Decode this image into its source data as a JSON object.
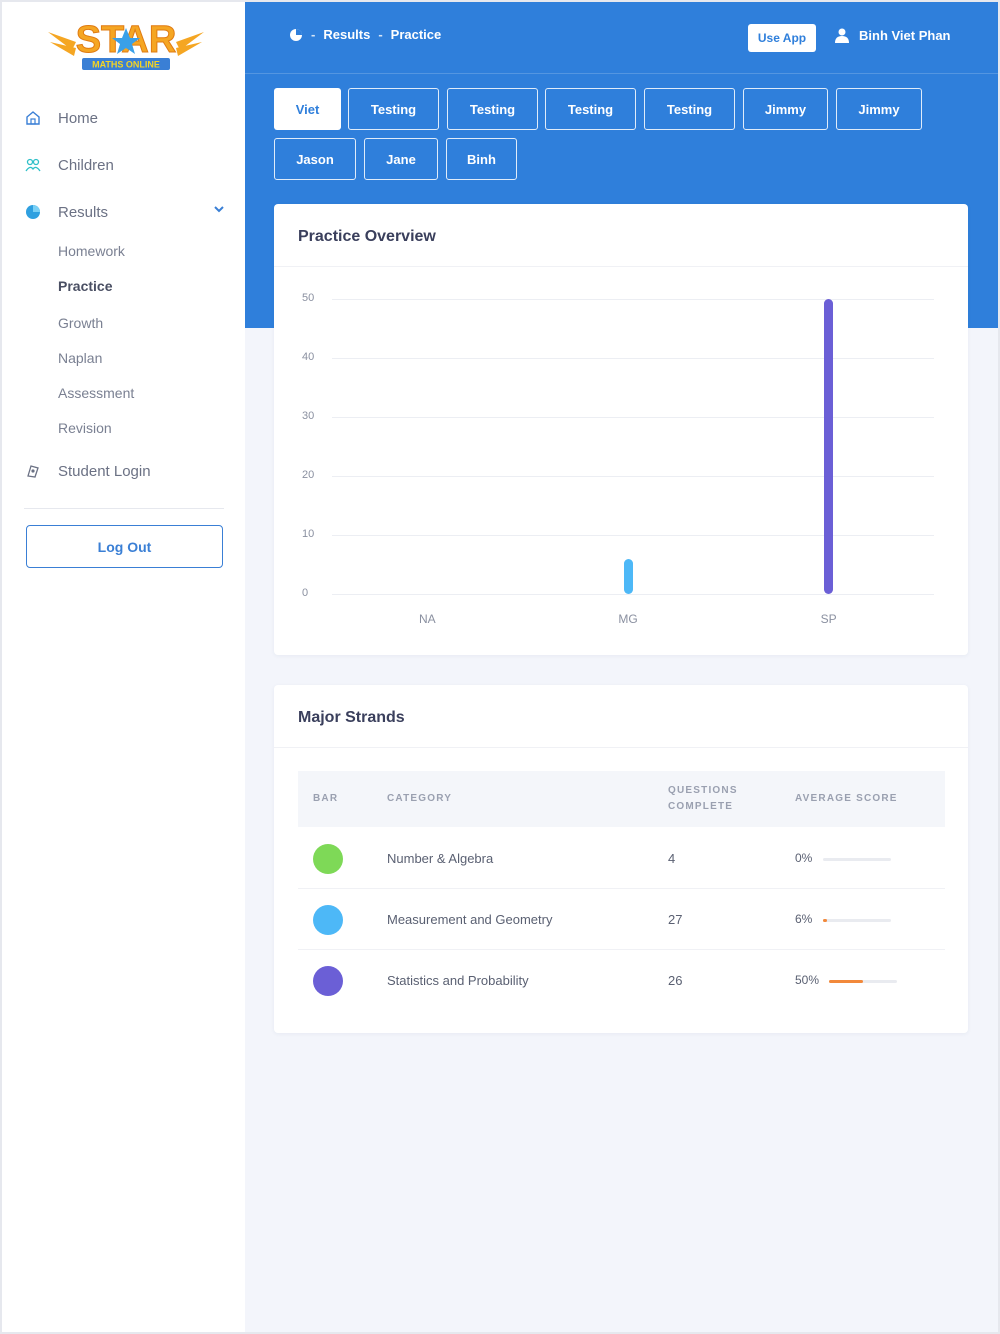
{
  "brand": {
    "logo_text": "STAR",
    "logo_subtext": "MATHS ONLINE"
  },
  "colors": {
    "primary": "#2f7fdb",
    "accent": "#f5a623",
    "na": "#7ed957",
    "mg": "#4db8f7",
    "sp": "#6b5fd6",
    "progress": "#f2893b"
  },
  "sidebar": {
    "items": [
      {
        "label": "Home",
        "icon": "home-icon"
      },
      {
        "label": "Children",
        "icon": "children-icon"
      },
      {
        "label": "Results",
        "icon": "pie-chart-icon"
      },
      {
        "label": "Student Login",
        "icon": "student-login-icon"
      }
    ],
    "sub_items": [
      "Homework",
      "Practice",
      "Growth",
      "Naplan",
      "Assessment",
      "Revision"
    ],
    "active_sub": "Practice",
    "logout_label": "Log Out"
  },
  "header": {
    "breadcrumb": [
      "Results",
      "Practice"
    ],
    "use_app_label": "Use App",
    "user_name": "Binh Viet Phan"
  },
  "students": [
    "Viet",
    "Testing",
    "Testing",
    "Testing",
    "Testing",
    "Jimmy",
    "Jimmy",
    "Jason",
    "Jane",
    "Binh"
  ],
  "active_student": "Viet",
  "overview": {
    "title": "Practice Overview"
  },
  "chart_data": {
    "type": "bar",
    "title": "Practice Overview",
    "categories": [
      "NA",
      "MG",
      "SP"
    ],
    "values": [
      0,
      6,
      50
    ],
    "ylim": [
      0,
      50
    ],
    "yticks": [
      0,
      10,
      20,
      30,
      40,
      50
    ],
    "xlabel": "",
    "ylabel": "",
    "grid": true
  },
  "strands": {
    "title": "Major Strands",
    "headers": {
      "bar": "BAR",
      "category": "CATEGORY",
      "questions_line1": "QUESTIONS",
      "questions_line2": "COMPLETE",
      "average": "AVERAGE SCORE"
    },
    "rows": [
      {
        "category": "Number & Algebra",
        "questions": "4",
        "score": "0%",
        "score_value": 0,
        "color": "#7ed957"
      },
      {
        "category": "Measurement and Geometry",
        "questions": "27",
        "score": "6%",
        "score_value": 6,
        "color": "#4db8f7"
      },
      {
        "category": "Statistics and Probability",
        "questions": "26",
        "score": "50%",
        "score_value": 50,
        "color": "#6b5fd6"
      }
    ]
  }
}
